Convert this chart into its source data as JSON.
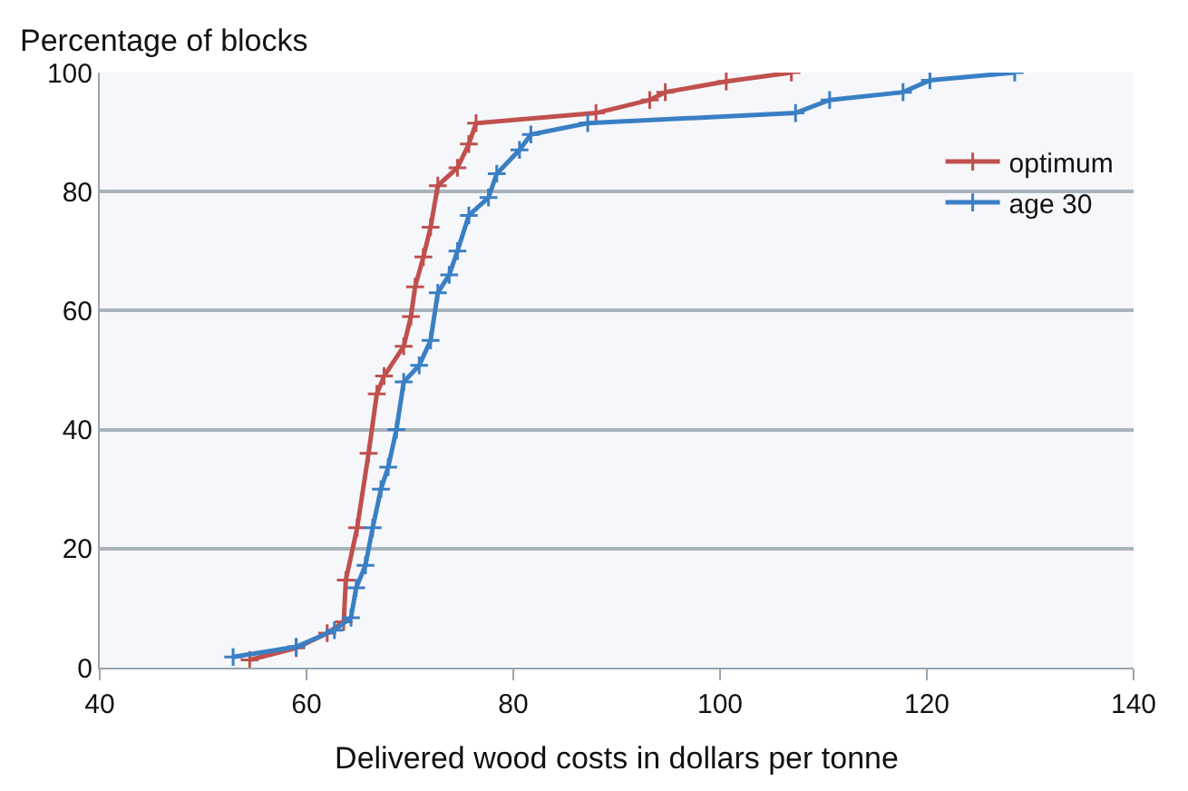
{
  "chart_data": {
    "type": "line",
    "xlabel": "Delivered wood costs in dollars per tonne",
    "ylabel": "Percentage of blocks",
    "xlim": [
      40,
      140
    ],
    "xticks": [
      40,
      60,
      80,
      100,
      120,
      140
    ],
    "ylim": [
      0,
      100
    ],
    "yticks": [
      0,
      20,
      40,
      60,
      80,
      100
    ],
    "grid": "y",
    "legend": "top right",
    "marker": "cross",
    "line_style": "solid",
    "series": [
      {
        "name": "optimum",
        "color": "#c0504d",
        "x": [
          54.5,
          59,
          62,
          63.6,
          63.8,
          64.9,
          66,
          66.8,
          67.5,
          69.4,
          70.1,
          70.5,
          71.3,
          72,
          72.7,
          74.6,
          75.7,
          76.4,
          88,
          93.2,
          94.7,
          100.6,
          106.9
        ],
        "values": [
          1.3,
          3.3,
          5.8,
          7.7,
          14.7,
          23.5,
          36,
          46,
          49,
          54,
          59,
          64,
          69,
          74,
          81,
          84,
          88,
          91.5,
          93.2,
          95.4,
          96.7,
          98.5,
          100
        ]
      },
      {
        "name": "age 30",
        "color": "#3a7fc4",
        "x": [
          52.9,
          59,
          62.7,
          64.3,
          64.8,
          65.7,
          66.4,
          67.2,
          67.9,
          68.7,
          69.4,
          70.9,
          72,
          72.7,
          73.8,
          74.6,
          75.7,
          77.6,
          78.4,
          80.6,
          81.7,
          87.2,
          107.3,
          110.6,
          117.7,
          120.3,
          128.5
        ],
        "values": [
          1.8,
          3.5,
          6.3,
          8.4,
          13.4,
          17.2,
          23.5,
          30,
          33.7,
          40,
          48,
          50.8,
          55,
          63,
          66,
          70,
          76,
          79,
          83,
          87,
          89.6,
          91.5,
          93.2,
          95.4,
          96.7,
          98.7,
          100
        ]
      }
    ]
  }
}
